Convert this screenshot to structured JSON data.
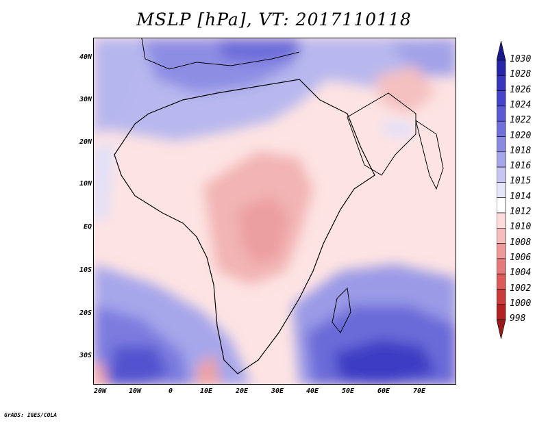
{
  "title": "MSLP [hPa], VT: 2017110118",
  "credit": "GrADS: IGES/COLA",
  "axes": {
    "y_ticks": [
      "40N",
      "30N",
      "20N",
      "10N",
      "EQ",
      "10S",
      "20S",
      "30S"
    ],
    "x_ticks": [
      "20W",
      "10W",
      "0",
      "10E",
      "20E",
      "30E",
      "40E",
      "50E",
      "60E",
      "70E"
    ]
  },
  "colorbar": {
    "levels": [
      "1030",
      "1028",
      "1026",
      "1024",
      "1022",
      "1020",
      "1018",
      "1016",
      "1015",
      "1014",
      "1012",
      "1010",
      "1008",
      "1006",
      "1004",
      "1002",
      "1000",
      "998"
    ],
    "colors": [
      "#1a1a8c",
      "#2626a8",
      "#3535bd",
      "#4545cc",
      "#5a5ad6",
      "#7070dd",
      "#8a8ae3",
      "#a6a6ea",
      "#c6c6f2",
      "#e4e4fa",
      "#ffffff",
      "#fcdcdc",
      "#f7bcbc",
      "#ef9a9a",
      "#e67a7a",
      "#dd5a5a",
      "#cc3b3b",
      "#b22222",
      "#991a1a"
    ],
    "colors_note_unused": ""
  }
}
